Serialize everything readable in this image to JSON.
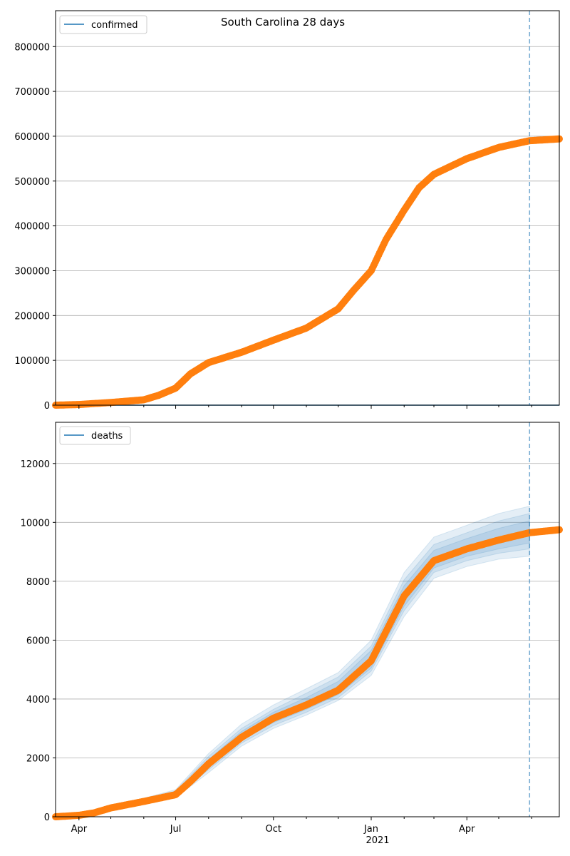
{
  "figure_title": "South Carolina 28 days",
  "chart_data": [
    {
      "type": "line",
      "title": "",
      "legend": [
        "confirmed"
      ],
      "legend_position": "top-left",
      "grid": "horizontal",
      "ylim": [
        0,
        880000
      ],
      "yticks": [
        0,
        100000,
        200000,
        300000,
        400000,
        500000,
        600000,
        700000,
        800000
      ],
      "xlim": [
        "2020-03-10",
        "2021-06-27"
      ],
      "forecast_start": "2021-05-30",
      "series": [
        {
          "name": "confirmed",
          "role": "fitted line",
          "points": [
            [
              "2020-03-10",
              0
            ],
            [
              "2021-06-27",
              0
            ]
          ]
        },
        {
          "role": "observed markers",
          "points": [
            [
              "2020-03-10",
              0
            ],
            [
              "2020-04-01",
              1500
            ],
            [
              "2020-05-01",
              6000
            ],
            [
              "2020-06-01",
              12000
            ],
            [
              "2020-06-15",
              22000
            ],
            [
              "2020-07-01",
              38000
            ],
            [
              "2020-07-15",
              70000
            ],
            [
              "2020-08-01",
              95000
            ],
            [
              "2020-09-01",
              118000
            ],
            [
              "2020-10-01",
              145000
            ],
            [
              "2020-11-01",
              172000
            ],
            [
              "2020-12-01",
              215000
            ],
            [
              "2020-12-15",
              255000
            ],
            [
              "2021-01-01",
              300000
            ],
            [
              "2021-01-15",
              370000
            ],
            [
              "2021-02-01",
              435000
            ],
            [
              "2021-02-15",
              485000
            ],
            [
              "2021-03-01",
              515000
            ],
            [
              "2021-04-01",
              550000
            ],
            [
              "2021-05-01",
              575000
            ],
            [
              "2021-05-30",
              590000
            ],
            [
              "2021-06-27",
              594000
            ]
          ]
        }
      ]
    },
    {
      "type": "line",
      "title": "",
      "legend": [
        "deaths"
      ],
      "legend_position": "top-left",
      "grid": "horizontal",
      "ylim": [
        0,
        13400
      ],
      "yticks": [
        0,
        2000,
        4000,
        6000,
        8000,
        10000,
        12000
      ],
      "xlim": [
        "2020-03-10",
        "2021-06-27"
      ],
      "xticks": [
        "Apr",
        "Jul",
        "Oct",
        "Jan",
        "Apr"
      ],
      "xticks_dates": [
        "2020-04-01",
        "2020-07-01",
        "2020-10-01",
        "2021-01-01",
        "2021-04-01"
      ],
      "year_label": "2021",
      "forecast_start": "2021-05-30",
      "series": [
        {
          "role": "observed markers",
          "points": [
            [
              "2020-03-10",
              0
            ],
            [
              "2020-04-01",
              50
            ],
            [
              "2020-04-15",
              130
            ],
            [
              "2020-05-01",
              300
            ],
            [
              "2020-06-01",
              520
            ],
            [
              "2020-07-01",
              750
            ],
            [
              "2020-07-15",
              1200
            ],
            [
              "2020-08-01",
              1800
            ],
            [
              "2020-09-01",
              2700
            ],
            [
              "2020-10-01",
              3350
            ],
            [
              "2020-11-01",
              3800
            ],
            [
              "2020-12-01",
              4300
            ],
            [
              "2021-01-01",
              5300
            ],
            [
              "2021-01-15",
              6300
            ],
            [
              "2021-02-01",
              7500
            ],
            [
              "2021-03-01",
              8700
            ],
            [
              "2021-04-01",
              9100
            ],
            [
              "2021-05-01",
              9400
            ],
            [
              "2021-05-30",
              9650
            ],
            [
              "2021-06-27",
              9750
            ]
          ]
        },
        {
          "name": "deaths",
          "role": "model fit with uncertainty bands",
          "bands": [
            {
              "level": "inner",
              "points": [
                [
                  "2020-03-10",
                  0,
                  0
                ],
                [
                  "2020-04-01",
                  30,
                  80
                ],
                [
                  "2020-05-01",
                  250,
                  350
                ],
                [
                  "2020-06-01",
                  480,
                  580
                ],
                [
                  "2020-07-01",
                  700,
                  850
                ],
                [
                  "2020-08-01",
                  1700,
                  1950
                ],
                [
                  "2020-09-01",
                  2600,
                  2900
                ],
                [
                  "2020-10-01",
                  3200,
                  3550
                ],
                [
                  "2020-11-01",
                  3650,
                  4050
                ],
                [
                  "2020-12-01",
                  4150,
                  4600
                ],
                [
                  "2021-01-01",
                  5050,
                  5650
                ],
                [
                  "2021-02-01",
                  7150,
                  7850
                ],
                [
                  "2021-03-01",
                  8450,
                  9050
                ],
                [
                  "2021-04-01",
                  8850,
                  9450
                ],
                [
                  "2021-05-01",
                  9100,
                  9800
                ],
                [
                  "2021-05-30",
                  9300,
                  10050
                ]
              ]
            },
            {
              "level": "middle",
              "points": [
                [
                  "2020-03-10",
                  0,
                  0
                ],
                [
                  "2020-04-01",
                  20,
                  90
                ],
                [
                  "2020-05-01",
                  230,
                  370
                ],
                [
                  "2020-06-01",
                  460,
                  600
                ],
                [
                  "2020-07-01",
                  680,
                  880
                ],
                [
                  "2020-08-01",
                  1600,
                  2050
                ],
                [
                  "2020-09-01",
                  2500,
                  3000
                ],
                [
                  "2020-10-01",
                  3100,
                  3650
                ],
                [
                  "2020-11-01",
                  3550,
                  4200
                ],
                [
                  "2020-12-01",
                  4050,
                  4750
                ],
                [
                  "2021-01-01",
                  4950,
                  5800
                ],
                [
                  "2021-02-01",
                  7000,
                  8050
                ],
                [
                  "2021-03-01",
                  8300,
                  9250
                ],
                [
                  "2021-04-01",
                  8700,
                  9650
                ],
                [
                  "2021-05-01",
                  8950,
                  10050
                ],
                [
                  "2021-05-30",
                  9100,
                  10300
                ]
              ]
            },
            {
              "level": "outer",
              "points": [
                [
                  "2020-03-10",
                  0,
                  0
                ],
                [
                  "2020-04-01",
                  10,
                  100
                ],
                [
                  "2020-05-01",
                  200,
                  400
                ],
                [
                  "2020-06-01",
                  440,
                  630
                ],
                [
                  "2020-07-01",
                  650,
                  920
                ],
                [
                  "2020-08-01",
                  1500,
                  2150
                ],
                [
                  "2020-09-01",
                  2400,
                  3150
                ],
                [
                  "2020-10-01",
                  3000,
                  3800
                ],
                [
                  "2020-11-01",
                  3450,
                  4350
                ],
                [
                  "2020-12-01",
                  3950,
                  4900
                ],
                [
                  "2021-01-01",
                  4800,
                  6000
                ],
                [
                  "2021-02-01",
                  6800,
                  8300
                ],
                [
                  "2021-03-01",
                  8100,
                  9500
                ],
                [
                  "2021-04-01",
                  8500,
                  9900
                ],
                [
                  "2021-05-01",
                  8750,
                  10300
                ],
                [
                  "2021-05-30",
                  8850,
                  10550
                ]
              ]
            }
          ]
        }
      ]
    }
  ],
  "colors": {
    "line": "#1f77b4",
    "markers": "#ff7f0e",
    "band": "#1f77b4",
    "forecast_line": "#1f77b4",
    "grid": "#b0b0b0"
  }
}
